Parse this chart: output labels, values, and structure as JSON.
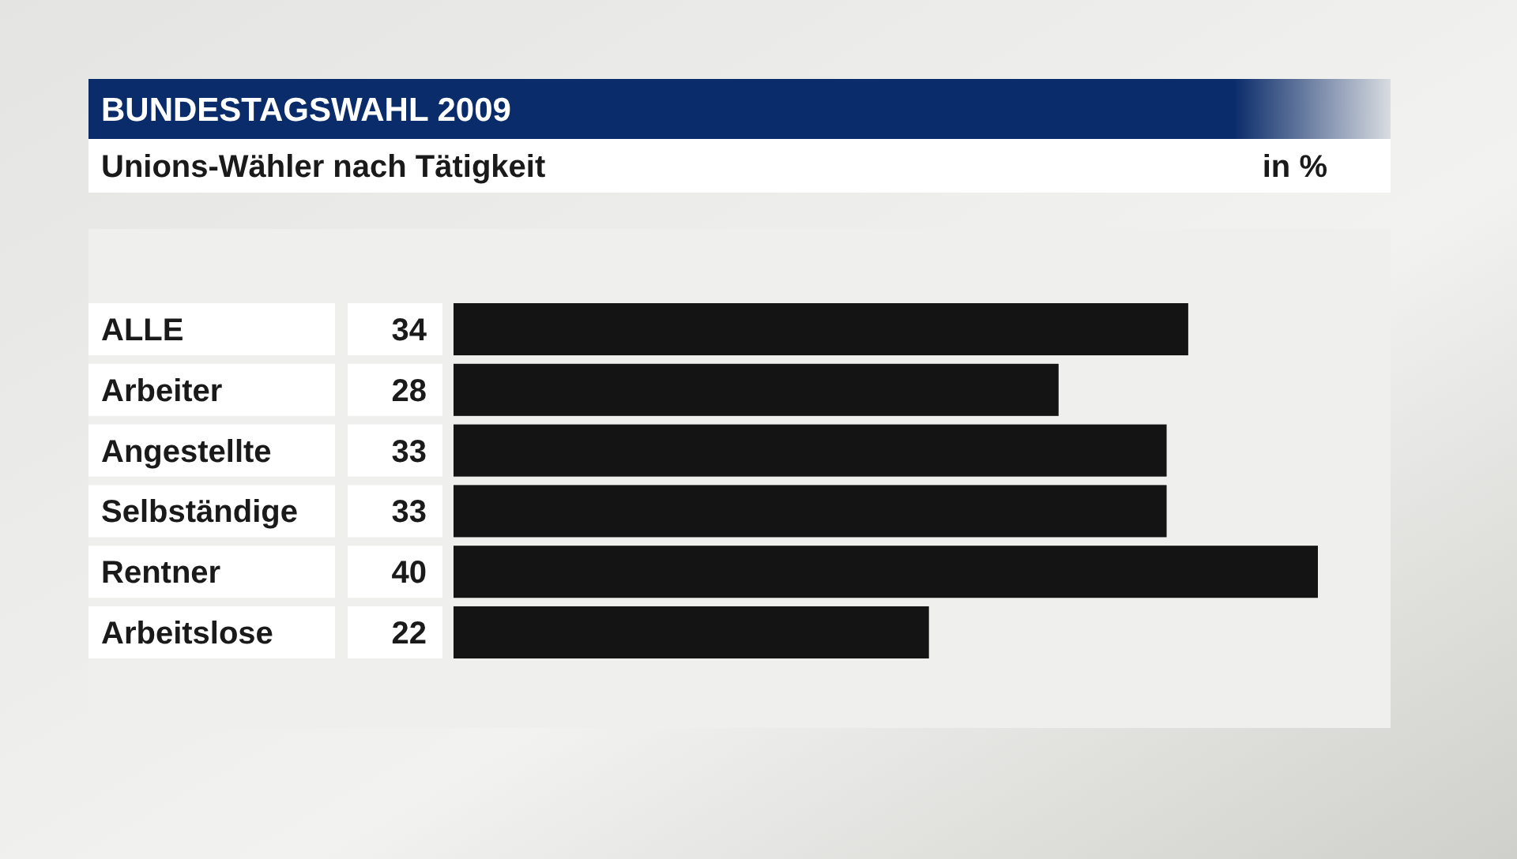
{
  "chart_data": {
    "type": "bar",
    "orientation": "horizontal",
    "title": "BUNDESTAGSWAHL 2009",
    "subtitle": "Unions-Wähler nach Tätigkeit",
    "annotations": [
      "in %"
    ],
    "categories": [
      "ALLE",
      "Arbeiter",
      "Angestellte",
      "Selbständige",
      "Rentner",
      "Arbeitslose"
    ],
    "values": [
      34,
      28,
      33,
      33,
      40,
      22
    ],
    "color": "#141414",
    "data_labels": true
  }
}
